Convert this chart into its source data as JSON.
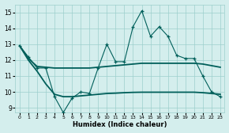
{
  "bg_color": "#d4eeed",
  "line_color": "#005f5a",
  "grid_color": "#9dcfcc",
  "xlabel": "Humidex (Indice chaleur)",
  "xlim": [
    -0.5,
    23.5
  ],
  "ylim": [
    8.7,
    15.5
  ],
  "xtick_vals": [
    0,
    1,
    2,
    3,
    4,
    5,
    6,
    7,
    8,
    9,
    10,
    11,
    12,
    13,
    14,
    15,
    16,
    17,
    18,
    19,
    20,
    21,
    22,
    23
  ],
  "ytick_vals": [
    9,
    10,
    11,
    12,
    13,
    14,
    15
  ],
  "main_x": [
    0,
    1,
    2,
    3,
    4,
    5,
    6,
    7,
    8,
    9,
    10,
    11,
    12,
    13,
    14,
    15,
    16,
    17,
    18,
    19,
    20,
    21,
    22,
    23
  ],
  "main_y": [
    12.9,
    12.2,
    11.5,
    11.5,
    9.7,
    8.7,
    9.6,
    10.0,
    9.9,
    11.5,
    13.0,
    11.9,
    11.9,
    14.1,
    15.1,
    13.5,
    14.1,
    13.5,
    12.3,
    12.1,
    12.1,
    11.0,
    10.0,
    9.7
  ],
  "upper_x": [
    0,
    1,
    2,
    3,
    4,
    5,
    6,
    7,
    8,
    9,
    10,
    11,
    12,
    13,
    14,
    15,
    16,
    17,
    18,
    19,
    20,
    21,
    22,
    23
  ],
  "upper_y": [
    12.9,
    12.1,
    11.6,
    11.55,
    11.5,
    11.5,
    11.5,
    11.5,
    11.5,
    11.55,
    11.6,
    11.65,
    11.7,
    11.75,
    11.8,
    11.8,
    11.8,
    11.8,
    11.8,
    11.8,
    11.8,
    11.75,
    11.65,
    11.55
  ],
  "lower_x": [
    0,
    1,
    2,
    3,
    4,
    5,
    6,
    7,
    8,
    9,
    10,
    11,
    12,
    13,
    14,
    15,
    16,
    17,
    18,
    19,
    20,
    21,
    22,
    23
  ],
  "lower_y": [
    12.9,
    12.0,
    11.3,
    10.5,
    9.85,
    9.7,
    9.7,
    9.75,
    9.8,
    9.85,
    9.9,
    9.92,
    9.95,
    9.97,
    9.98,
    9.98,
    9.98,
    9.98,
    9.98,
    9.98,
    9.98,
    9.95,
    9.9,
    9.85
  ]
}
